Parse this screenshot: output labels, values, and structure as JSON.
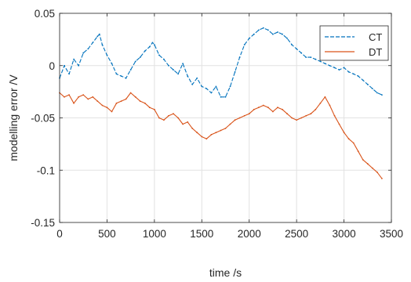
{
  "chart_data": {
    "type": "line",
    "xlabel": "time /s",
    "ylabel": "modelling error /V",
    "xlim": [
      0,
      3500
    ],
    "ylim": [
      -0.15,
      0.05
    ],
    "xticks": [
      0,
      500,
      1000,
      1500,
      2000,
      2500,
      3000,
      3500
    ],
    "xtick_labels": [
      "0",
      "500",
      "1000",
      "1500",
      "2000",
      "2500",
      "3000",
      "3500"
    ],
    "yticks": [
      -0.15,
      -0.1,
      -0.05,
      0,
      0.05
    ],
    "ytick_labels": [
      "-0.15",
      "-0.1",
      "-0.05",
      "0",
      "0.05"
    ],
    "grid": true,
    "legend": {
      "position": "top-right"
    },
    "series": [
      {
        "name": "CT",
        "color": "#0072BD",
        "style": "dashed",
        "points": [
          [
            0,
            -0.012
          ],
          [
            50,
            0.0
          ],
          [
            100,
            -0.008
          ],
          [
            150,
            0.006
          ],
          [
            200,
            0.0
          ],
          [
            250,
            0.012
          ],
          [
            300,
            0.016
          ],
          [
            350,
            0.022
          ],
          [
            400,
            0.028
          ],
          [
            420,
            0.03
          ],
          [
            450,
            0.02
          ],
          [
            500,
            0.01
          ],
          [
            550,
            0.002
          ],
          [
            600,
            -0.008
          ],
          [
            650,
            -0.01
          ],
          [
            700,
            -0.012
          ],
          [
            750,
            -0.004
          ],
          [
            800,
            0.004
          ],
          [
            850,
            0.008
          ],
          [
            900,
            0.014
          ],
          [
            950,
            0.018
          ],
          [
            980,
            0.022
          ],
          [
            1000,
            0.02
          ],
          [
            1050,
            0.01
          ],
          [
            1100,
            0.006
          ],
          [
            1150,
            0.0
          ],
          [
            1200,
            -0.004
          ],
          [
            1250,
            -0.008
          ],
          [
            1300,
            0.002
          ],
          [
            1350,
            -0.01
          ],
          [
            1400,
            -0.018
          ],
          [
            1450,
            -0.012
          ],
          [
            1500,
            -0.02
          ],
          [
            1550,
            -0.022
          ],
          [
            1600,
            -0.026
          ],
          [
            1650,
            -0.02
          ],
          [
            1700,
            -0.03
          ],
          [
            1750,
            -0.03
          ],
          [
            1800,
            -0.02
          ],
          [
            1850,
            -0.006
          ],
          [
            1900,
            0.008
          ],
          [
            1950,
            0.02
          ],
          [
            2000,
            0.026
          ],
          [
            2050,
            0.03
          ],
          [
            2100,
            0.034
          ],
          [
            2150,
            0.036
          ],
          [
            2200,
            0.034
          ],
          [
            2250,
            0.03
          ],
          [
            2300,
            0.032
          ],
          [
            2350,
            0.03
          ],
          [
            2400,
            0.026
          ],
          [
            2450,
            0.02
          ],
          [
            2500,
            0.016
          ],
          [
            2550,
            0.012
          ],
          [
            2600,
            0.008
          ],
          [
            2650,
            0.008
          ],
          [
            2700,
            0.006
          ],
          [
            2750,
            0.004
          ],
          [
            2800,
            0.002
          ],
          [
            2850,
            0.0
          ],
          [
            2900,
            -0.002
          ],
          [
            2950,
            -0.004
          ],
          [
            3000,
            -0.002
          ],
          [
            3050,
            -0.006
          ],
          [
            3100,
            -0.008
          ],
          [
            3150,
            -0.01
          ],
          [
            3200,
            -0.014
          ],
          [
            3250,
            -0.018
          ],
          [
            3300,
            -0.022
          ],
          [
            3350,
            -0.026
          ],
          [
            3400,
            -0.028
          ]
        ]
      },
      {
        "name": "DT",
        "color": "#D95319",
        "style": "solid",
        "points": [
          [
            0,
            -0.026
          ],
          [
            50,
            -0.03
          ],
          [
            100,
            -0.028
          ],
          [
            150,
            -0.036
          ],
          [
            200,
            -0.03
          ],
          [
            250,
            -0.028
          ],
          [
            300,
            -0.032
          ],
          [
            350,
            -0.03
          ],
          [
            400,
            -0.034
          ],
          [
            450,
            -0.038
          ],
          [
            500,
            -0.04
          ],
          [
            550,
            -0.044
          ],
          [
            600,
            -0.036
          ],
          [
            650,
            -0.034
          ],
          [
            700,
            -0.032
          ],
          [
            750,
            -0.026
          ],
          [
            800,
            -0.03
          ],
          [
            850,
            -0.034
          ],
          [
            900,
            -0.036
          ],
          [
            950,
            -0.04
          ],
          [
            1000,
            -0.042
          ],
          [
            1050,
            -0.05
          ],
          [
            1100,
            -0.052
          ],
          [
            1150,
            -0.048
          ],
          [
            1200,
            -0.046
          ],
          [
            1250,
            -0.05
          ],
          [
            1300,
            -0.056
          ],
          [
            1350,
            -0.054
          ],
          [
            1400,
            -0.06
          ],
          [
            1450,
            -0.064
          ],
          [
            1500,
            -0.068
          ],
          [
            1550,
            -0.07
          ],
          [
            1600,
            -0.066
          ],
          [
            1650,
            -0.064
          ],
          [
            1700,
            -0.062
          ],
          [
            1750,
            -0.06
          ],
          [
            1800,
            -0.056
          ],
          [
            1850,
            -0.052
          ],
          [
            1900,
            -0.05
          ],
          [
            1950,
            -0.048
          ],
          [
            2000,
            -0.046
          ],
          [
            2050,
            -0.042
          ],
          [
            2100,
            -0.04
          ],
          [
            2150,
            -0.038
          ],
          [
            2200,
            -0.04
          ],
          [
            2250,
            -0.044
          ],
          [
            2300,
            -0.04
          ],
          [
            2350,
            -0.042
          ],
          [
            2400,
            -0.046
          ],
          [
            2450,
            -0.05
          ],
          [
            2500,
            -0.052
          ],
          [
            2550,
            -0.05
          ],
          [
            2600,
            -0.048
          ],
          [
            2650,
            -0.046
          ],
          [
            2700,
            -0.042
          ],
          [
            2750,
            -0.036
          ],
          [
            2800,
            -0.03
          ],
          [
            2850,
            -0.038
          ],
          [
            2900,
            -0.048
          ],
          [
            2950,
            -0.056
          ],
          [
            3000,
            -0.064
          ],
          [
            3050,
            -0.07
          ],
          [
            3100,
            -0.074
          ],
          [
            3150,
            -0.082
          ],
          [
            3200,
            -0.09
          ],
          [
            3250,
            -0.094
          ],
          [
            3300,
            -0.098
          ],
          [
            3350,
            -0.102
          ],
          [
            3400,
            -0.108
          ]
        ]
      }
    ]
  }
}
